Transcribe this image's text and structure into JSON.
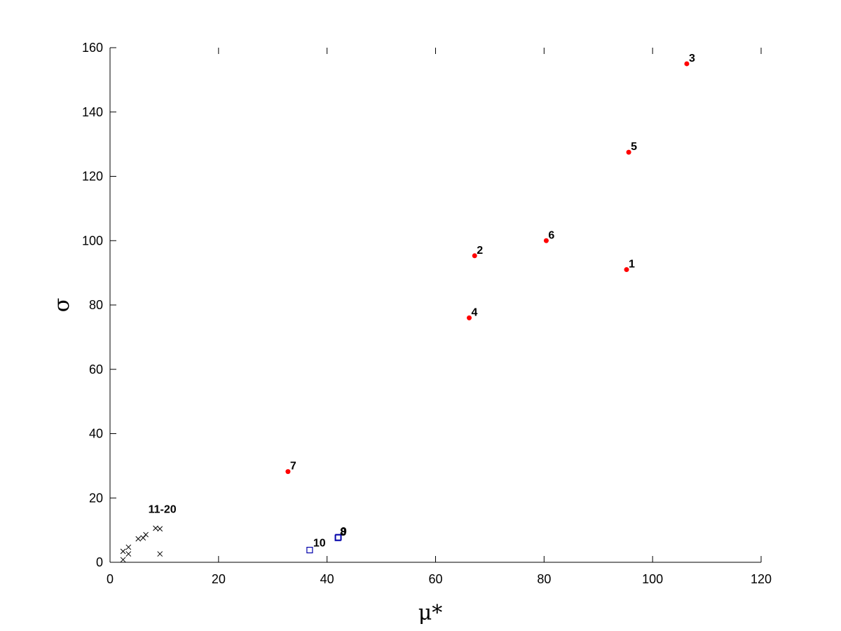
{
  "chart_data": {
    "type": "scatter",
    "xlabel": "μ*",
    "ylabel": "σ",
    "xlim": [
      0,
      120
    ],
    "ylim": [
      0,
      160
    ],
    "x_ticks": [
      "0",
      "20",
      "40",
      "60",
      "80",
      "100",
      "120"
    ],
    "y_ticks": [
      "0",
      "20",
      "40",
      "60",
      "80",
      "100",
      "120",
      "140",
      "160"
    ],
    "grid": false,
    "legend": "none",
    "series": [
      {
        "marker": "dot",
        "color": "#ff0000",
        "points": [
          {
            "label": "1",
            "x": 95.2,
            "y": 91
          },
          {
            "label": "2",
            "x": 67.2,
            "y": 95.3
          },
          {
            "label": "3",
            "x": 106.3,
            "y": 155
          },
          {
            "label": "4",
            "x": 66.2,
            "y": 76
          },
          {
            "label": "5",
            "x": 95.6,
            "y": 127.5
          },
          {
            "label": "6",
            "x": 80.4,
            "y": 100
          },
          {
            "label": "7",
            "x": 32.8,
            "y": 28.2
          }
        ]
      },
      {
        "marker": "square",
        "color": "#0000aa",
        "points": [
          {
            "label": "8",
            "x": 42,
            "y": 7.6
          },
          {
            "label": "9",
            "x": 42.1,
            "y": 7.8
          },
          {
            "label": "10",
            "x": 36.8,
            "y": 3.8
          }
        ]
      },
      {
        "marker": "cross",
        "color": "#000000",
        "group_label": "11-20",
        "points": [
          {
            "x": 2.4,
            "y": 3.4
          },
          {
            "x": 2.4,
            "y": 0.8
          },
          {
            "x": 3.4,
            "y": 4.7
          },
          {
            "x": 3.4,
            "y": 2.6
          },
          {
            "x": 5.2,
            "y": 7.3
          },
          {
            "x": 6.1,
            "y": 7.6
          },
          {
            "x": 6.6,
            "y": 8.6
          },
          {
            "x": 8.4,
            "y": 10.6
          },
          {
            "x": 9.2,
            "y": 10.4
          },
          {
            "x": 9.2,
            "y": 2.6
          }
        ]
      }
    ]
  }
}
